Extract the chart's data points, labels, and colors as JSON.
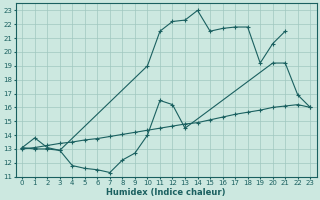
{
  "xlabel": "Humidex (Indice chaleur)",
  "bg_color": "#cce8e0",
  "grid_color": "#a0c8c0",
  "line_color": "#1a6060",
  "xlim": [
    -0.5,
    23.5
  ],
  "ylim": [
    11,
    23.5
  ],
  "xticks": [
    0,
    1,
    2,
    3,
    4,
    5,
    6,
    7,
    8,
    9,
    10,
    11,
    12,
    13,
    14,
    15,
    16,
    17,
    18,
    19,
    20,
    21,
    22,
    23
  ],
  "yticks": [
    11,
    12,
    13,
    14,
    15,
    16,
    17,
    18,
    19,
    20,
    21,
    22,
    23
  ],
  "line1_x": [
    0,
    1,
    2,
    3,
    10,
    11,
    12,
    13,
    14,
    15,
    16,
    17,
    18,
    19,
    20,
    21
  ],
  "line1_y": [
    13.1,
    13.8,
    13.1,
    12.9,
    19.0,
    21.5,
    22.2,
    22.3,
    23.0,
    21.5,
    21.7,
    21.8,
    21.8,
    19.2,
    20.6,
    21.5
  ],
  "line2_x": [
    0,
    1,
    2,
    3,
    4,
    5,
    6,
    7,
    8,
    9,
    10,
    11,
    12,
    13,
    14,
    15,
    16,
    17,
    18,
    19,
    20,
    21,
    22,
    23
  ],
  "line2_y": [
    13.0,
    13.1,
    13.25,
    13.4,
    13.5,
    13.65,
    13.75,
    13.9,
    14.05,
    14.2,
    14.35,
    14.5,
    14.65,
    14.8,
    14.9,
    15.1,
    15.3,
    15.5,
    15.65,
    15.8,
    16.0,
    16.1,
    16.2,
    16.0
  ],
  "line3_x": [
    0,
    1,
    2,
    3,
    4,
    5,
    6,
    7,
    8,
    9,
    10,
    11,
    12,
    13,
    20,
    21,
    22,
    23
  ],
  "line3_y": [
    13.1,
    13.0,
    13.0,
    12.9,
    11.8,
    11.6,
    11.5,
    11.3,
    12.2,
    12.7,
    14.0,
    16.5,
    16.2,
    14.5,
    19.2,
    19.2,
    16.9,
    16.0
  ]
}
